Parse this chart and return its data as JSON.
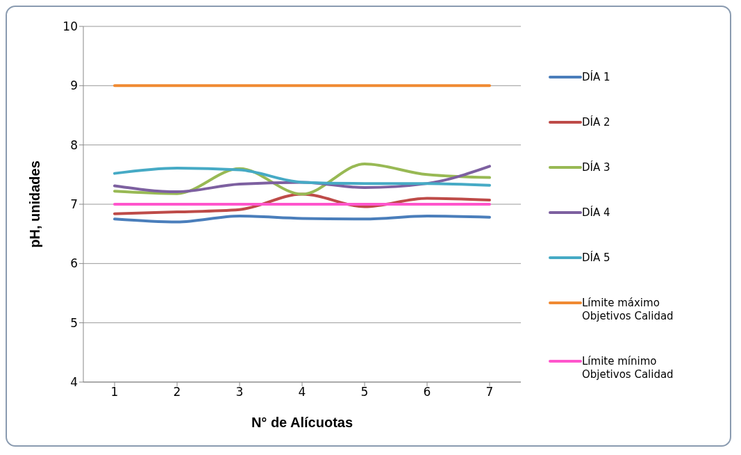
{
  "chart_data": {
    "type": "line",
    "xlabel": "N° de Alícuotas",
    "ylabel": "pH, unidades",
    "categories": [
      "1",
      "2",
      "3",
      "4",
      "5",
      "6",
      "7"
    ],
    "series": [
      {
        "name": "DÍA 1",
        "color": "#4a7ebb",
        "values": [
          6.75,
          6.7,
          6.8,
          6.76,
          6.75,
          6.8,
          6.78
        ]
      },
      {
        "name": "DÍA 2",
        "color": "#be4b48",
        "values": [
          6.84,
          6.87,
          6.91,
          7.17,
          6.96,
          7.1,
          7.07
        ]
      },
      {
        "name": "DÍA 3",
        "color": "#98b954",
        "values": [
          7.22,
          7.18,
          7.6,
          7.17,
          7.68,
          7.5,
          7.45
        ]
      },
      {
        "name": "DÍA 4",
        "color": "#7d60a0",
        "values": [
          7.31,
          7.21,
          7.34,
          7.37,
          7.28,
          7.35,
          7.64
        ]
      },
      {
        "name": "DÍA 5",
        "color": "#46aac5",
        "values": [
          7.52,
          7.61,
          7.58,
          7.37,
          7.35,
          7.35,
          7.32
        ]
      },
      {
        "name": "Límite máximo Objetivos Calidad",
        "color": "#f08a32",
        "values": [
          9,
          9,
          9,
          9,
          9,
          9,
          9
        ]
      },
      {
        "name": "Límite mínimo Objetivos Calidad",
        "color": "#ff55cc",
        "values": [
          7,
          7,
          7,
          7,
          7,
          7,
          7
        ]
      }
    ],
    "ylim": [
      4,
      10
    ],
    "yticks": [
      4,
      5,
      6,
      7,
      8,
      9,
      10
    ],
    "grid": "y",
    "legend": "right",
    "marker": "none",
    "line_style": "solid"
  }
}
